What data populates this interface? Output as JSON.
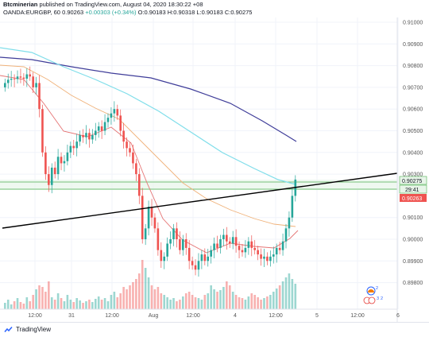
{
  "header": {
    "author": "Btcminerian",
    "published": " published on TradingView.com, August 04, 2020 18:30:22 +08",
    "symbol": "OANDA:EURGBP, 60",
    "last": "0.90263",
    "change": "+0.00303 (+0.34%)",
    "ohlc": "O:0.90183 H:0.90318 L:0.90183 C:0.90275"
  },
  "price_axis": {
    "labels": [
      "0.91000",
      "0.90900",
      "0.90800",
      "0.90700",
      "0.90600",
      "0.90500",
      "0.90400",
      "0.90300",
      "0.90100",
      "0.90000",
      "0.89900",
      "0.89800"
    ],
    "tags": {
      "current": "0.90275",
      "countdown": "29:41",
      "bid": "0.90263"
    }
  },
  "time_axis": {
    "labels": [
      "12:00",
      "31",
      "12:00",
      "Aug",
      "12:00",
      "4",
      "12:00",
      "5",
      "12:00",
      "6"
    ]
  },
  "footer": {
    "brand": "TradingView"
  },
  "colors": {
    "up": "#26a69a",
    "down": "#ef5350",
    "ma_long": "#3f3d99",
    "ma_mid": "#80deea",
    "ma_orange": "#f0b27a",
    "ma_red": "#e57373",
    "trendline": "#000000",
    "hline": "#4caf50"
  }
}
